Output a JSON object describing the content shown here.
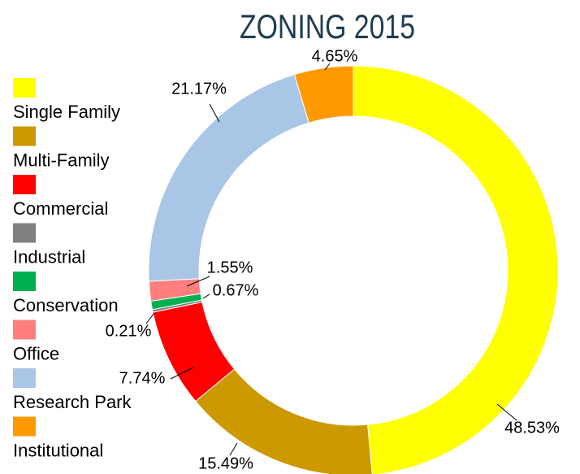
{
  "chart_data": {
    "type": "donut",
    "title": "ZONING 2015",
    "categories": [
      "Single Family",
      "Multi-Family",
      "Commercial",
      "Industrial",
      "Conservation",
      "Office",
      "Research Park",
      "Institutional"
    ],
    "values": [
      48.53,
      15.49,
      7.74,
      0.21,
      0.67,
      1.55,
      21.17,
      4.65
    ],
    "value_labels": [
      "48.53%",
      "15.49%",
      "7.74%",
      "0.21%",
      "0.67%",
      "1.55%",
      "21.17%",
      "4.65%"
    ],
    "colors": [
      "#ffff00",
      "#cc9900",
      "#ff0000",
      "#808080",
      "#00b050",
      "#ff7f7f",
      "#a9c6e6",
      "#ff9900"
    ],
    "legend": "left"
  }
}
